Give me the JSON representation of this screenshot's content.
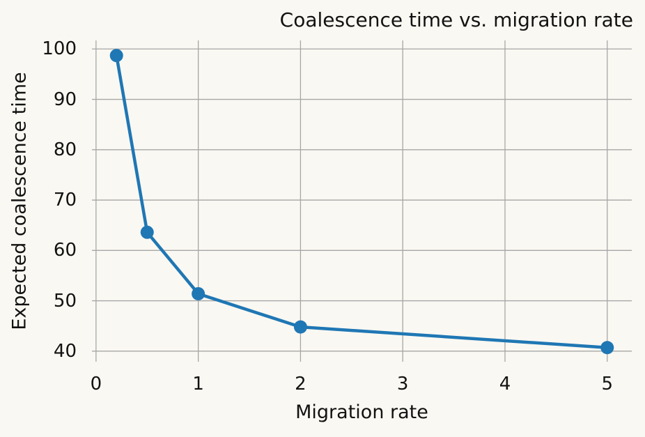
{
  "chart_data": {
    "type": "line",
    "title": "Coalescence time vs. migration rate",
    "xlabel": "Migration rate",
    "ylabel": "Expected coalescence time",
    "x": [
      0.2,
      0.5,
      1,
      2,
      5
    ],
    "y": [
      98.7,
      63.6,
      51.4,
      44.8,
      40.7
    ],
    "x_ticks": [
      0,
      1,
      2,
      3,
      4,
      5
    ],
    "y_ticks": [
      40,
      50,
      60,
      70,
      80,
      90,
      100
    ],
    "xlim": [
      -0.04,
      5.24
    ],
    "ylim": [
      37.9,
      101.7
    ],
    "grid": true,
    "legend": false,
    "marker": "circle",
    "colors": {
      "line": "#1f77b4",
      "marker": "#1f77b4",
      "grid": "#a6a6a6",
      "background": "#faf8f2",
      "text": "#121212"
    }
  }
}
